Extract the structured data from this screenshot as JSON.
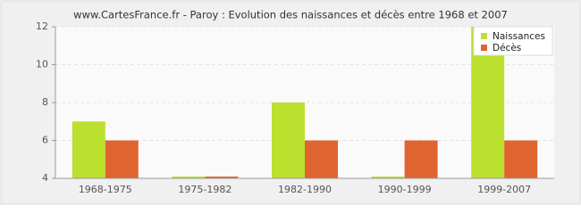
{
  "chart_data": {
    "type": "bar",
    "title": "www.CartesFrance.fr - Paroy : Evolution des naissances et décès entre 1968 et 2007",
    "categories": [
      "1968-1975",
      "1975-1982",
      "1982-1990",
      "1990-1999",
      "1999-2007"
    ],
    "series": [
      {
        "name": "Naissances",
        "color": "#bbe02e",
        "values": [
          7,
          4,
          8,
          4,
          12
        ]
      },
      {
        "name": "Décès",
        "color": "#e06430",
        "values": [
          6,
          4,
          6,
          6,
          6
        ]
      }
    ],
    "ylim": [
      4,
      12
    ],
    "yticks": [
      4,
      6,
      8,
      10,
      12
    ],
    "grid": true,
    "legend": "top-right"
  }
}
